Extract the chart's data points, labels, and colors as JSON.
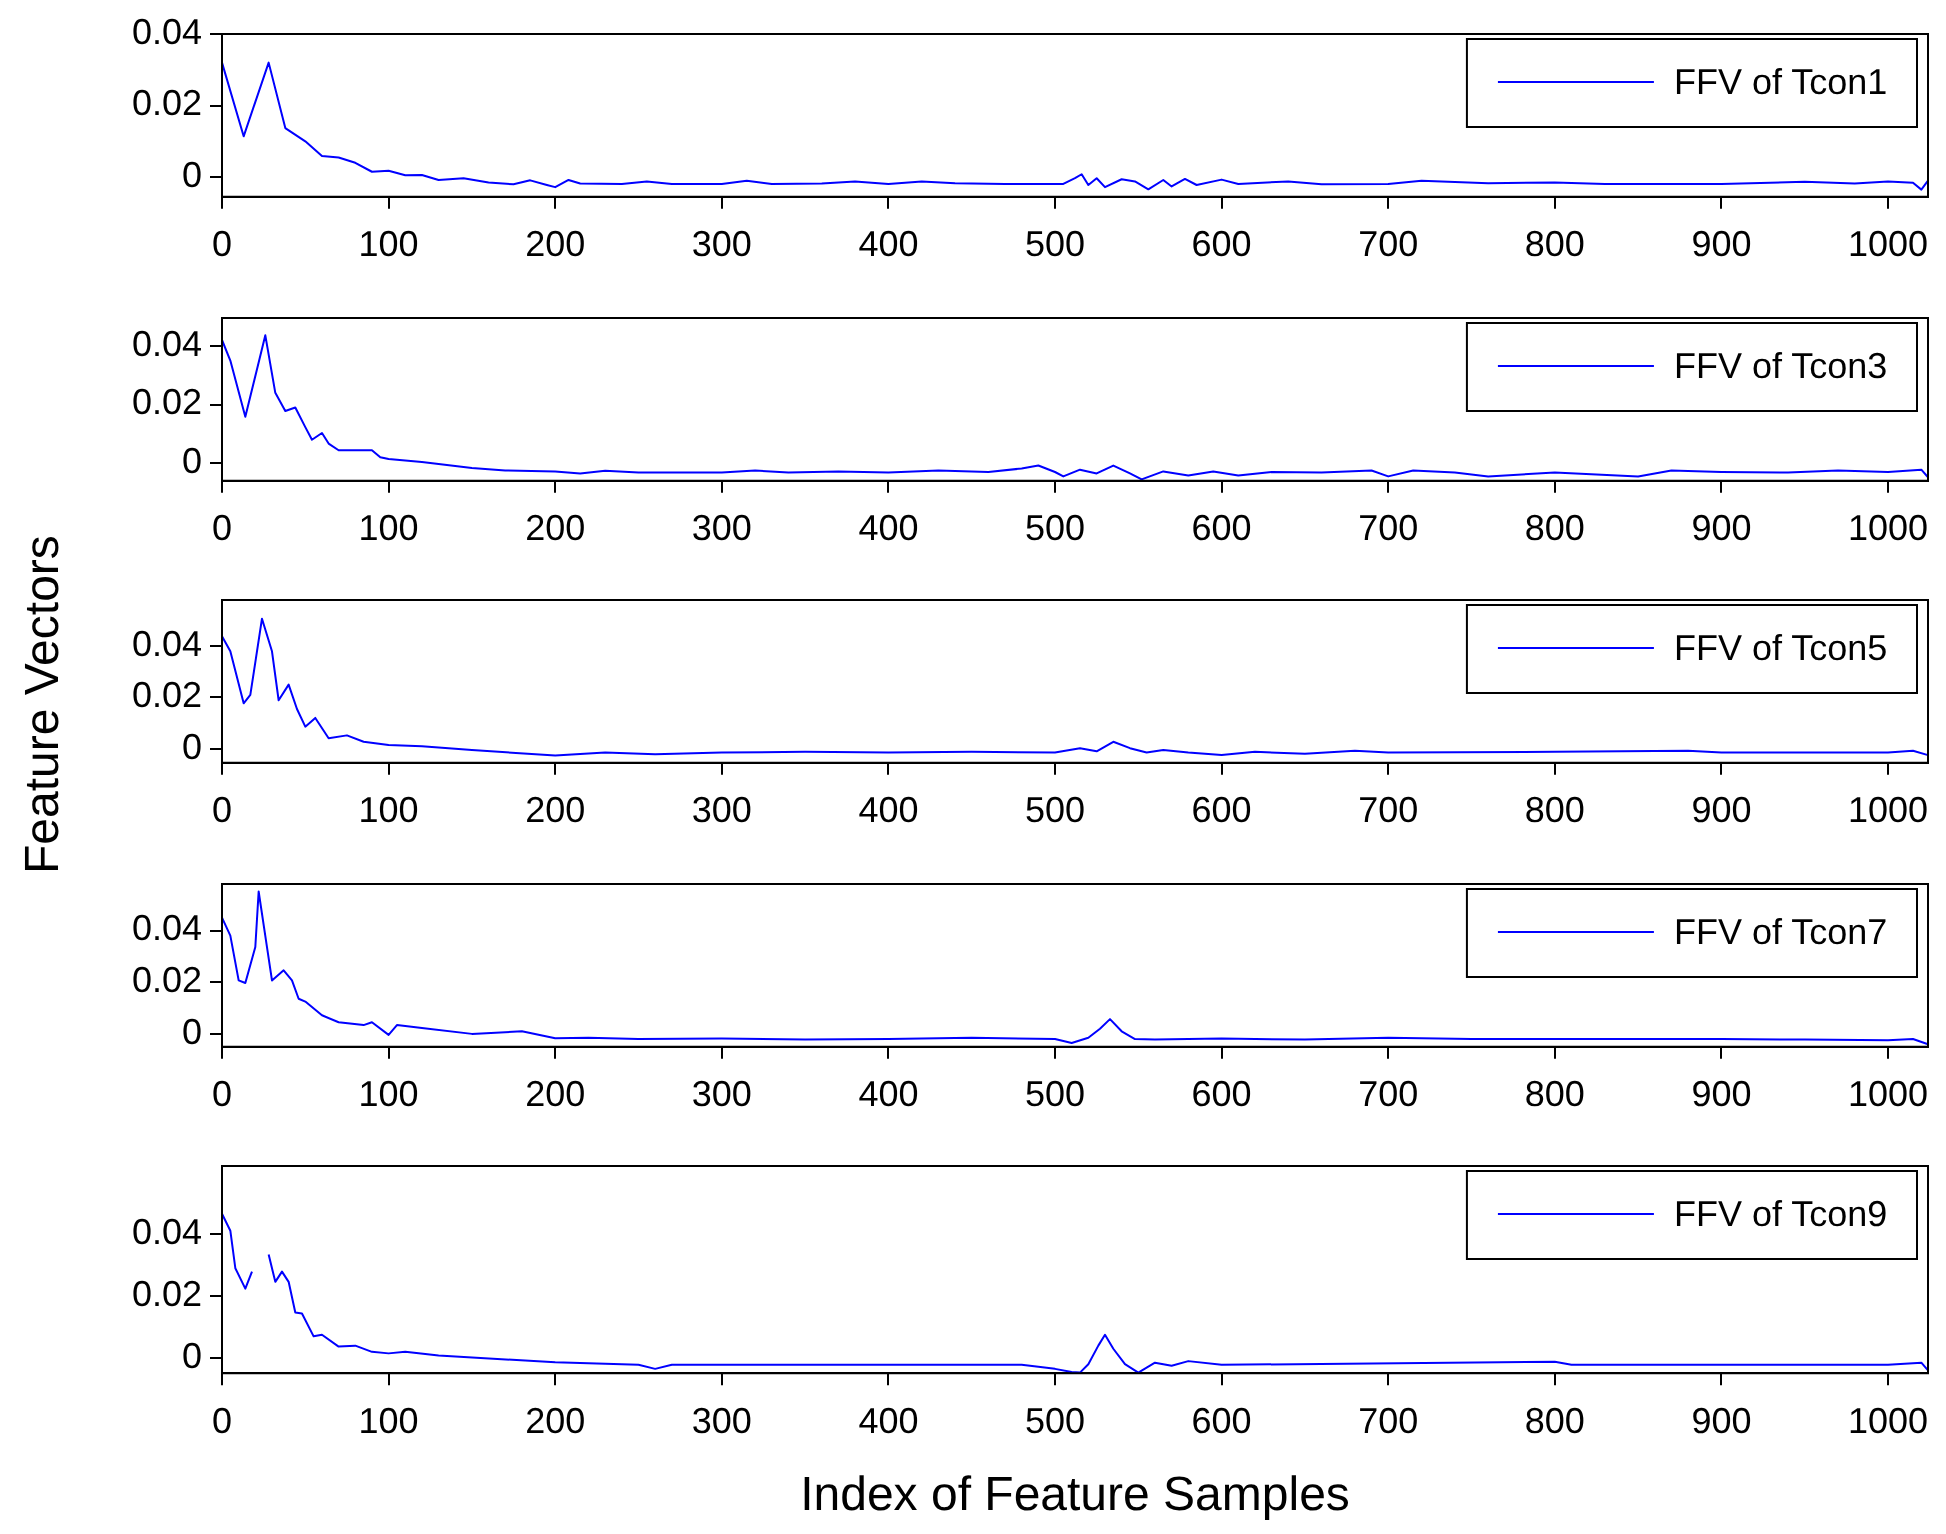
{
  "chart_data": [
    {
      "type": "line",
      "legend": "top right",
      "xlim": [
        0,
        1024
      ],
      "ylim": [
        -0.0055,
        0.04
      ],
      "xticks": [
        0,
        100,
        200,
        300,
        400,
        500,
        600,
        700,
        800,
        900,
        1000
      ],
      "yticks": [
        0,
        0.02,
        0.04
      ],
      "x": [
        0,
        13,
        28,
        38,
        50,
        60,
        70,
        80,
        90,
        100,
        110,
        120,
        130,
        145,
        160,
        175,
        185,
        195,
        200,
        208,
        215,
        240,
        255,
        270,
        300,
        315,
        330,
        360,
        380,
        400,
        420,
        440,
        470,
        505,
        512,
        516,
        520,
        525,
        530,
        540,
        548,
        556,
        565,
        570,
        578,
        585,
        600,
        610,
        640,
        660,
        700,
        720,
        760,
        800,
        830,
        900,
        950,
        980,
        1000,
        1015,
        1020,
        1024
      ],
      "series": [
        {
          "name": "FFV of Tcon1",
          "color": "#0000ff",
          "values": [
            0.032,
            0.0114,
            0.032,
            0.0137,
            0.01,
            0.0059,
            0.0055,
            0.004,
            0.0015,
            0.0018,
            0.0005,
            0.0006,
            -0.0008,
            -0.0003,
            -0.0015,
            -0.002,
            -0.0009,
            -0.0022,
            -0.0028,
            -0.0008,
            -0.0018,
            -0.0019,
            -0.0012,
            -0.0019,
            -0.0019,
            -0.001,
            -0.0019,
            -0.0018,
            -0.0012,
            -0.0019,
            -0.0012,
            -0.0017,
            -0.0019,
            -0.0019,
            -0.0003,
            0.0008,
            -0.0022,
            -0.0003,
            -0.0028,
            -0.0006,
            -0.0012,
            -0.0034,
            -0.0008,
            -0.0026,
            -0.0005,
            -0.0022,
            -0.0007,
            -0.0019,
            -0.0012,
            -0.002,
            -0.0019,
            -0.001,
            -0.0017,
            -0.0015,
            -0.0019,
            -0.0019,
            -0.0013,
            -0.0018,
            -0.0012,
            -0.0016,
            -0.0035,
            -0.001
          ]
        }
      ]
    },
    {
      "type": "line",
      "legend": "top right",
      "xlim": [
        0,
        1024
      ],
      "ylim": [
        -0.006,
        0.0495
      ],
      "xticks": [
        0,
        100,
        200,
        300,
        400,
        500,
        600,
        700,
        800,
        900,
        1000
      ],
      "yticks": [
        0,
        0.02,
        0.04
      ],
      "x": [
        0,
        5,
        14,
        26,
        32,
        38,
        44,
        50,
        54,
        60,
        64,
        70,
        90,
        95,
        100,
        120,
        150,
        170,
        200,
        215,
        230,
        250,
        300,
        320,
        340,
        370,
        400,
        430,
        460,
        480,
        490,
        500,
        505,
        515,
        525,
        535,
        545,
        552,
        565,
        580,
        595,
        610,
        630,
        660,
        690,
        700,
        715,
        740,
        760,
        800,
        850,
        870,
        900,
        940,
        970,
        1000,
        1020,
        1024
      ],
      "series": [
        {
          "name": "FFV of Tcon3",
          "color": "#0000ff",
          "values": [
            0.042,
            0.035,
            0.0158,
            0.0436,
            0.024,
            0.0178,
            0.019,
            0.0123,
            0.008,
            0.0103,
            0.0067,
            0.0044,
            0.0044,
            0.002,
            0.0014,
            0.0004,
            -0.0016,
            -0.0025,
            -0.0028,
            -0.0035,
            -0.0026,
            -0.0032,
            -0.0032,
            -0.0025,
            -0.0032,
            -0.0028,
            -0.0032,
            -0.0025,
            -0.003,
            -0.0018,
            -0.0008,
            -0.003,
            -0.0045,
            -0.0022,
            -0.0035,
            -0.0008,
            -0.0035,
            -0.0055,
            -0.0028,
            -0.0042,
            -0.0028,
            -0.0042,
            -0.003,
            -0.0032,
            -0.0025,
            -0.0045,
            -0.0025,
            -0.0032,
            -0.0045,
            -0.0032,
            -0.0045,
            -0.0025,
            -0.003,
            -0.0032,
            -0.0025,
            -0.003,
            -0.0022,
            -0.0048
          ]
        }
      ]
    },
    {
      "type": "line",
      "legend": "top right",
      "xlim": [
        0,
        1024
      ],
      "ylim": [
        -0.0055,
        0.058
      ],
      "xticks": [
        0,
        100,
        200,
        300,
        400,
        500,
        600,
        700,
        800,
        900,
        1000
      ],
      "yticks": [
        0,
        0.02,
        0.04
      ],
      "x": [
        0,
        5,
        13,
        17,
        24,
        30,
        34,
        40,
        45,
        50,
        56,
        64,
        75,
        85,
        100,
        120,
        150,
        200,
        230,
        260,
        300,
        350,
        400,
        450,
        500,
        515,
        525,
        535,
        545,
        555,
        565,
        580,
        600,
        620,
        650,
        680,
        700,
        800,
        880,
        900,
        1000,
        1015,
        1024
      ],
      "series": [
        {
          "name": "FFV of Tcon5",
          "color": "#0000ff",
          "values": [
            0.0439,
            0.038,
            0.0177,
            0.021,
            0.0507,
            0.038,
            0.0189,
            0.025,
            0.0155,
            0.0086,
            0.012,
            0.0041,
            0.0052,
            0.0027,
            0.0014,
            0.001,
            -0.0005,
            -0.0027,
            -0.0015,
            -0.0022,
            -0.0015,
            -0.0012,
            -0.0015,
            -0.0012,
            -0.0015,
            0.0002,
            -0.001,
            0.0027,
            0.0002,
            -0.0015,
            -0.0005,
            -0.0015,
            -0.0025,
            -0.0012,
            -0.002,
            -0.0008,
            -0.0015,
            -0.0012,
            -0.0008,
            -0.0015,
            -0.0015,
            -0.0008,
            -0.0025
          ]
        }
      ]
    },
    {
      "type": "line",
      "legend": "top right",
      "xlim": [
        0,
        1024
      ],
      "ylim": [
        -0.005,
        0.058
      ],
      "xticks": [
        0,
        100,
        200,
        300,
        400,
        500,
        600,
        700,
        800,
        900,
        1000
      ],
      "yticks": [
        0,
        0.02,
        0.04
      ],
      "x": [
        0,
        5,
        10,
        14,
        20,
        22,
        27,
        30,
        37,
        42,
        46,
        50,
        60,
        70,
        85,
        90,
        100,
        105,
        120,
        150,
        180,
        200,
        220,
        250,
        300,
        350,
        400,
        450,
        500,
        510,
        520,
        527,
        533,
        540,
        548,
        560,
        600,
        650,
        700,
        750,
        800,
        900,
        950,
        1000,
        1015,
        1024
      ],
      "series": [
        {
          "name": "FFV of Tcon7",
          "color": "#0000ff",
          "values": [
            0.045,
            0.038,
            0.0207,
            0.0197,
            0.0336,
            0.0551,
            0.0336,
            0.0207,
            0.0246,
            0.0207,
            0.0136,
            0.0125,
            0.0072,
            0.0045,
            0.0034,
            0.0045,
            -0.0004,
            0.0034,
            0.0023,
            0,
            0.001,
            -0.0017,
            -0.0015,
            -0.002,
            -0.0018,
            -0.0022,
            -0.002,
            -0.0015,
            -0.002,
            -0.0035,
            -0.0015,
            0.002,
            0.0057,
            0.001,
            -0.002,
            -0.0022,
            -0.0018,
            -0.0022,
            -0.0015,
            -0.002,
            -0.002,
            -0.002,
            -0.0022,
            -0.0025,
            -0.002,
            -0.004
          ]
        }
      ]
    },
    {
      "type": "line",
      "legend": "top right",
      "xlim": [
        0,
        1024
      ],
      "ylim": [
        -0.0049,
        0.062
      ],
      "xticks": [
        0,
        100,
        200,
        300,
        400,
        500,
        600,
        700,
        800,
        900,
        1000
      ],
      "yticks": [
        0,
        0.02,
        0.04
      ],
      "xlabel": "Index of Feature Samples",
      "ylabel": "Feature Vectors",
      "x": [
        0,
        5,
        8,
        14,
        18,
        22,
        24,
        28,
        32,
        36,
        40,
        44,
        48,
        55,
        60,
        70,
        80,
        90,
        100,
        110,
        130,
        200,
        250,
        260,
        270,
        400,
        480,
        500,
        510,
        515,
        520,
        526,
        530,
        535,
        542,
        550,
        560,
        570,
        580,
        600,
        800,
        810,
        1000,
        1020,
        1024
      ],
      "series": [
        {
          "name": "FFV of Tcon9",
          "color": "#0000ff",
          "values": [
            0.0466,
            0.0411,
            0.029,
            0.0224,
            0.0279,
            null,
            null,
            0.0334,
            0.0246,
            0.0279,
            0.0246,
            0.0147,
            0.0144,
            0.007,
            0.0075,
            0.0037,
            0.004,
            0.002,
            0.0015,
            0.002,
            0.0008,
            -0.0014,
            -0.0022,
            -0.0035,
            -0.0022,
            -0.0022,
            -0.0022,
            -0.0035,
            -0.0045,
            -0.0047,
            -0.002,
            0.004,
            0.0075,
            0.003,
            -0.002,
            -0.0047,
            -0.0015,
            -0.0025,
            -0.001,
            -0.0022,
            -0.0012,
            -0.0022,
            -0.0022,
            -0.0015,
            -0.004
          ]
        }
      ]
    }
  ]
}
